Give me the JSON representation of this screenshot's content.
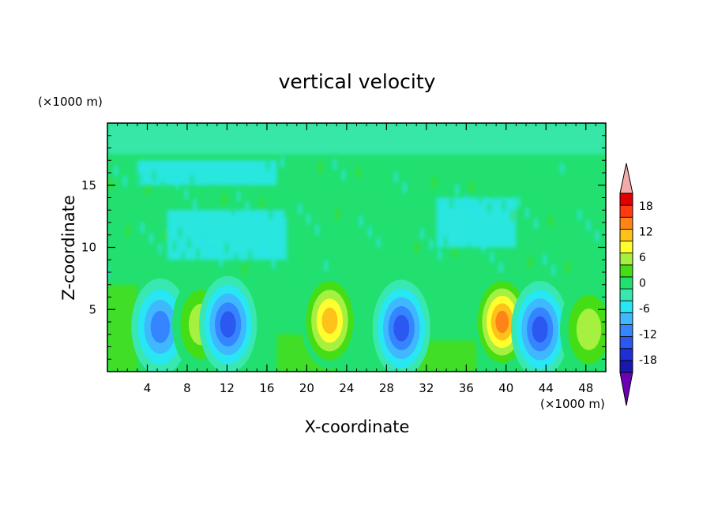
{
  "chart_data": {
    "type": "heatmap",
    "title": "vertical velocity",
    "xlabel": "X-coordinate",
    "ylabel": "Z-coordinate",
    "x_unit": "(×1000 m)",
    "y_unit": "(×1000 m)",
    "xlim": [
      0,
      50
    ],
    "ylim": [
      0,
      20
    ],
    "x_ticks": [
      4,
      8,
      12,
      16,
      20,
      24,
      28,
      32,
      36,
      40,
      44,
      48
    ],
    "y_ticks": [
      5,
      10,
      15
    ],
    "grid": false,
    "colorbar": {
      "placement": "right",
      "ticks": [
        18,
        12,
        6,
        0,
        -6,
        -12,
        -18
      ],
      "levels": [
        -21,
        -18,
        -15,
        -12,
        -9,
        -6,
        -3,
        0,
        3,
        6,
        9,
        12,
        15,
        18,
        21
      ],
      "colors": [
        "#6b00b5",
        "#1a17b0",
        "#1e2fd8",
        "#2a58f0",
        "#3485ff",
        "#3fb8ff",
        "#28e6f2",
        "#38e8b0",
        "#22e070",
        "#44dd16",
        "#a6f040",
        "#ffff30",
        "#ffc21a",
        "#ff8418",
        "#ff3a0e",
        "#e00000",
        "#f3aaaa"
      ]
    },
    "features": [
      {
        "x": 5.3,
        "z": 3.6,
        "value": -12
      },
      {
        "x": 9.4,
        "z": 3.8,
        "value": 8
      },
      {
        "x": 12.1,
        "z": 3.8,
        "value": -15
      },
      {
        "x": 22.3,
        "z": 4.1,
        "value": 14
      },
      {
        "x": 29.5,
        "z": 3.5,
        "value": -14
      },
      {
        "x": 39.6,
        "z": 4.0,
        "value": 17
      },
      {
        "x": 43.4,
        "z": 3.4,
        "value": -14
      },
      {
        "x": 48.3,
        "z": 3.4,
        "value": 8
      }
    ]
  }
}
